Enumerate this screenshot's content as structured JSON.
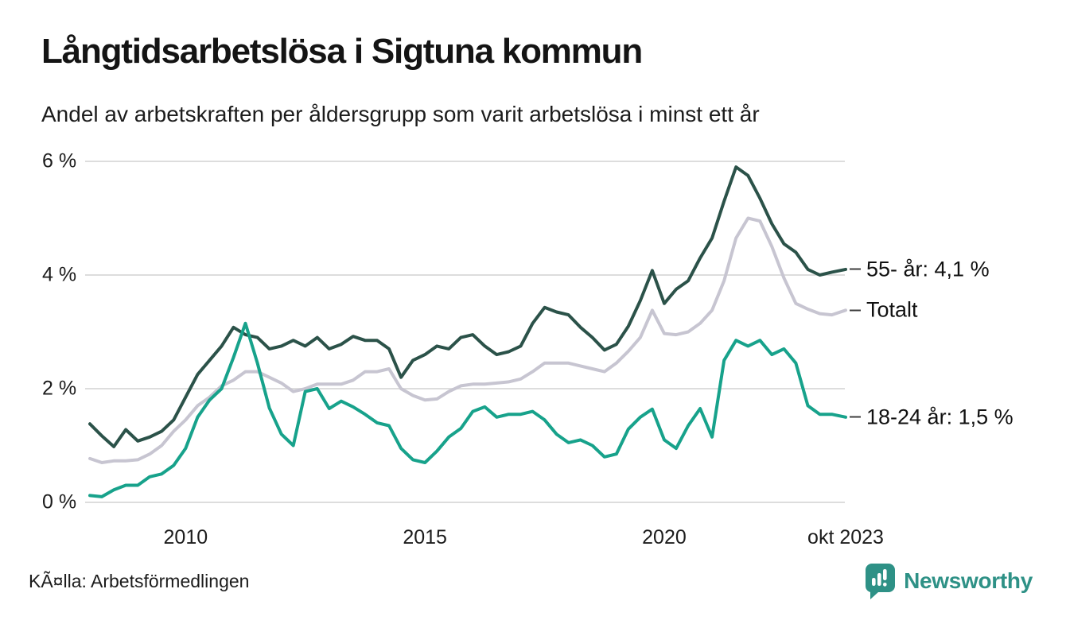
{
  "title": "Långtidsarbetslösa i Sigtuna kommun",
  "subtitle": "Andel av arbetskraften per åldersgrupp som varit arbetslösa i minst ett år",
  "source": "KÃ¤lla: Arbetsförmedlingen",
  "branding": {
    "name": "Newsworthy",
    "color": "#2e9186",
    "icon": "bar-chart-speech-bubble-icon"
  },
  "colors": {
    "grid": "#dddddd",
    "axis_text": "#1c1c1c",
    "end_label_text": "#111111",
    "end_tick": "#3c3c3c"
  },
  "chart_data": {
    "type": "line",
    "title": "Långtidsarbetslösa i Sigtuna kommun",
    "subtitle": "Andel av arbetskraften per åldersgrupp som varit arbetslösa i minst ett år",
    "unit": "% av arbetskraften",
    "x_range": [
      2008.0,
      2023.79
    ],
    "ylim": [
      0,
      6.3
    ],
    "grid": "horizontal",
    "legend_position": "right-end-labels",
    "x_years": [
      2008.0,
      2008.25,
      2008.5,
      2008.75,
      2009.0,
      2009.25,
      2009.5,
      2009.75,
      2010.0,
      2010.25,
      2010.5,
      2010.75,
      2011.0,
      2011.25,
      2011.5,
      2011.75,
      2012.0,
      2012.25,
      2012.5,
      2012.75,
      2013.0,
      2013.25,
      2013.5,
      2013.75,
      2014.0,
      2014.25,
      2014.5,
      2014.75,
      2015.0,
      2015.25,
      2015.5,
      2015.75,
      2016.0,
      2016.25,
      2016.5,
      2016.75,
      2017.0,
      2017.25,
      2017.5,
      2017.75,
      2018.0,
      2018.25,
      2018.5,
      2018.75,
      2019.0,
      2019.25,
      2019.5,
      2019.75,
      2020.0,
      2020.25,
      2020.5,
      2020.75,
      2021.0,
      2021.25,
      2021.5,
      2021.75,
      2022.0,
      2022.25,
      2022.5,
      2022.75,
      2023.0,
      2023.25,
      2023.5,
      2023.79
    ],
    "yticks": [
      {
        "value": 0,
        "label": "0 %"
      },
      {
        "value": 2,
        "label": "2 %"
      },
      {
        "value": 4,
        "label": "4 %"
      },
      {
        "value": 6,
        "label": "6 %"
      }
    ],
    "xticks": [
      {
        "year": 2010,
        "label": "2010"
      },
      {
        "year": 2015,
        "label": "2015"
      },
      {
        "year": 2020,
        "label": "2020"
      },
      {
        "year": 2023.79,
        "label": "okt 2023"
      }
    ],
    "series": [
      {
        "name": "Totalt",
        "end_label": "Totalt",
        "end_value": 3.4,
        "color": "#c7c5d1",
        "values": [
          0.77,
          0.7,
          0.73,
          0.73,
          0.75,
          0.85,
          1.0,
          1.25,
          1.45,
          1.7,
          1.85,
          2.05,
          2.15,
          2.3,
          2.3,
          2.2,
          2.1,
          1.95,
          2.0,
          2.08,
          2.08,
          2.08,
          2.15,
          2.3,
          2.3,
          2.35,
          2.0,
          1.88,
          1.8,
          1.82,
          1.95,
          2.05,
          2.08,
          2.08,
          2.1,
          2.12,
          2.17,
          2.3,
          2.45,
          2.45,
          2.45,
          2.4,
          2.35,
          2.3,
          2.45,
          2.66,
          2.9,
          3.38,
          2.97,
          2.95,
          3.0,
          3.15,
          3.38,
          3.9,
          4.65,
          5.0,
          4.95,
          4.5,
          3.95,
          3.5,
          3.4,
          3.32,
          3.3,
          3.38
        ]
      },
      {
        "name": "55- år",
        "end_label": "55- år: 4,1 %",
        "end_value": 4.1,
        "color": "#2b5249",
        "values": [
          1.38,
          1.17,
          0.98,
          1.28,
          1.08,
          1.15,
          1.25,
          1.45,
          1.85,
          2.25,
          2.5,
          2.75,
          3.08,
          2.95,
          2.9,
          2.7,
          2.75,
          2.85,
          2.75,
          2.9,
          2.7,
          2.78,
          2.92,
          2.85,
          2.85,
          2.7,
          2.2,
          2.5,
          2.6,
          2.75,
          2.7,
          2.9,
          2.95,
          2.75,
          2.6,
          2.65,
          2.75,
          3.15,
          3.43,
          3.35,
          3.3,
          3.08,
          2.9,
          2.68,
          2.78,
          3.1,
          3.55,
          4.08,
          3.5,
          3.75,
          3.9,
          4.3,
          4.65,
          5.3,
          5.9,
          5.75,
          5.35,
          4.9,
          4.55,
          4.4,
          4.1,
          4.0,
          4.05,
          4.1
        ]
      },
      {
        "name": "18-24 år",
        "end_label": "18-24 år: 1,5 %",
        "end_value": 1.5,
        "color": "#17a28b",
        "values": [
          0.12,
          0.1,
          0.22,
          0.3,
          0.3,
          0.45,
          0.5,
          0.65,
          0.95,
          1.5,
          1.8,
          2.0,
          2.55,
          3.15,
          2.45,
          1.66,
          1.2,
          1.0,
          1.95,
          2.0,
          1.65,
          1.78,
          1.68,
          1.55,
          1.4,
          1.35,
          0.95,
          0.75,
          0.7,
          0.9,
          1.15,
          1.3,
          1.6,
          1.68,
          1.5,
          1.55,
          1.55,
          1.6,
          1.45,
          1.2,
          1.05,
          1.1,
          1.0,
          0.8,
          0.85,
          1.29,
          1.5,
          1.64,
          1.1,
          0.95,
          1.35,
          1.65,
          1.15,
          2.5,
          2.85,
          2.75,
          2.85,
          2.6,
          2.7,
          2.45,
          1.7,
          1.55,
          1.55,
          1.5
        ]
      }
    ]
  }
}
